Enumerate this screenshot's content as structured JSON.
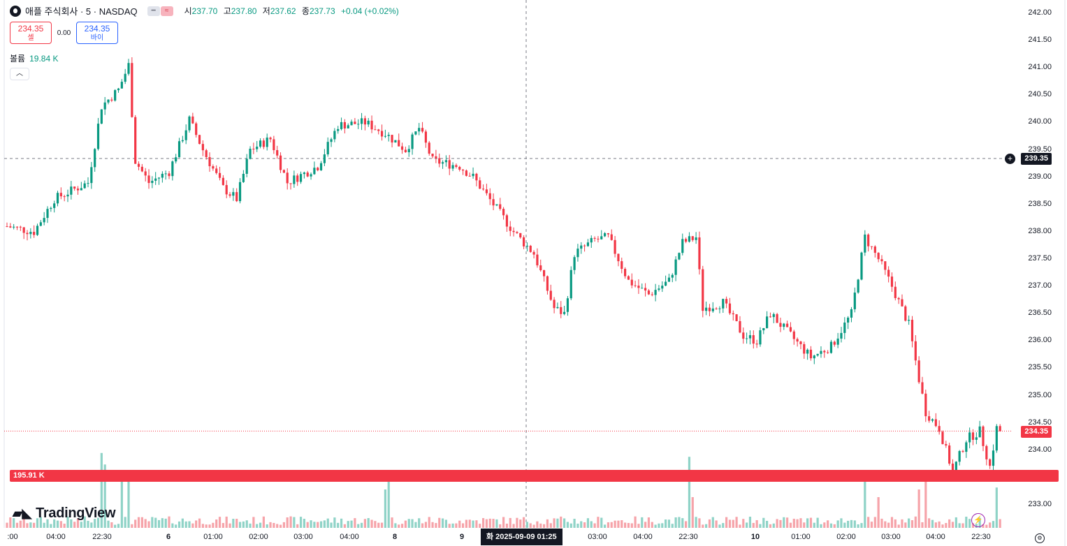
{
  "header": {
    "symbol": "애플 주식회사 · 5 · NASDAQ",
    "ohlc": {
      "o_label": "시",
      "o": "237.70",
      "h_label": "고",
      "h": "237.80",
      "l_label": "저",
      "l": "237.62",
      "c_label": "종",
      "c": "237.73",
      "change": "+0.04 (+0.02%)"
    },
    "pill_icons": [
      "minus-icon",
      "approx-icon"
    ]
  },
  "trade": {
    "sell_price": "234.35",
    "sell_label": "셀",
    "spread": "0.00",
    "buy_price": "234.35",
    "buy_label": "바이"
  },
  "volume": {
    "label": "볼륨",
    "value": "19.84 K",
    "scale_tag": "195.91 K"
  },
  "brand": "TradingView",
  "crosshair": {
    "price_tag": "239.35",
    "time_tag": "화 2025-09-09   01:25"
  },
  "last_price_tag": "234.35",
  "colors": {
    "up": "#089981",
    "down": "#f23645",
    "vol_up": "#8fd3c7",
    "vol_down": "#f6a3a9"
  },
  "chart_data": {
    "type": "candlestick",
    "ylim": [
      232.6,
      242.1
    ],
    "y_ticks": [
      "242.00",
      "241.50",
      "241.00",
      "240.50",
      "240.00",
      "239.50",
      "239.00",
      "238.50",
      "238.00",
      "237.50",
      "237.00",
      "236.50",
      "236.00",
      "235.50",
      "235.00",
      "234.50",
      "234.00",
      "233.00"
    ],
    "x_tick_labels": [
      ":00",
      "04:00",
      "22:30",
      "6",
      "01:00",
      "02:00",
      "03:00",
      "04:00",
      "8",
      "9",
      "03:00",
      "04:00",
      "22:30",
      "10",
      "01:00",
      "02:00",
      "03:00",
      "04:00",
      "22:30"
    ],
    "close_path": [
      {
        "i": 0,
        "p": 238.1
      },
      {
        "i": 8,
        "p": 238.0
      },
      {
        "i": 14,
        "p": 238.6
      },
      {
        "i": 24,
        "p": 238.9
      },
      {
        "i": 28,
        "p": 240.3
      },
      {
        "i": 33,
        "p": 240.6
      },
      {
        "i": 36,
        "p": 241.05
      },
      {
        "i": 38,
        "p": 239.3
      },
      {
        "i": 42,
        "p": 238.9
      },
      {
        "i": 48,
        "p": 239.1
      },
      {
        "i": 54,
        "p": 240.05
      },
      {
        "i": 58,
        "p": 239.5
      },
      {
        "i": 64,
        "p": 238.8
      },
      {
        "i": 68,
        "p": 238.6
      },
      {
        "i": 72,
        "p": 239.5
      },
      {
        "i": 78,
        "p": 239.7
      },
      {
        "i": 83,
        "p": 238.9
      },
      {
        "i": 92,
        "p": 239.2
      },
      {
        "i": 98,
        "p": 239.95
      },
      {
        "i": 106,
        "p": 240.0
      },
      {
        "i": 112,
        "p": 239.8
      },
      {
        "i": 118,
        "p": 239.5
      },
      {
        "i": 122,
        "p": 239.9
      },
      {
        "i": 126,
        "p": 239.3
      },
      {
        "i": 134,
        "p": 239.2
      },
      {
        "i": 138,
        "p": 239.0
      },
      {
        "i": 144,
        "p": 238.5
      },
      {
        "i": 150,
        "p": 238.0
      },
      {
        "i": 156,
        "p": 237.6
      },
      {
        "i": 162,
        "p": 236.6
      },
      {
        "i": 165,
        "p": 236.5
      },
      {
        "i": 168,
        "p": 237.6
      },
      {
        "i": 174,
        "p": 237.85
      },
      {
        "i": 178,
        "p": 237.9
      },
      {
        "i": 184,
        "p": 237.1
      },
      {
        "i": 190,
        "p": 236.85
      },
      {
        "i": 196,
        "p": 237.1
      },
      {
        "i": 200,
        "p": 237.8
      },
      {
        "i": 204,
        "p": 237.9
      },
      {
        "i": 206,
        "p": 236.6
      },
      {
        "i": 212,
        "p": 236.7
      },
      {
        "i": 218,
        "p": 236.1
      },
      {
        "i": 222,
        "p": 236.0
      },
      {
        "i": 226,
        "p": 236.5
      },
      {
        "i": 232,
        "p": 236.1
      },
      {
        "i": 238,
        "p": 235.7
      },
      {
        "i": 244,
        "p": 235.9
      },
      {
        "i": 250,
        "p": 236.5
      },
      {
        "i": 254,
        "p": 237.9
      },
      {
        "i": 258,
        "p": 237.5
      },
      {
        "i": 262,
        "p": 237.0
      },
      {
        "i": 267,
        "p": 236.3
      },
      {
        "i": 270,
        "p": 235.3
      },
      {
        "i": 272,
        "p": 234.7
      },
      {
        "i": 276,
        "p": 234.4
      },
      {
        "i": 280,
        "p": 233.6
      },
      {
        "i": 284,
        "p": 234.2
      },
      {
        "i": 288,
        "p": 234.35
      },
      {
        "i": 291,
        "p": 233.7
      },
      {
        "i": 293,
        "p": 234.4
      },
      {
        "i": 294,
        "p": 234.35
      }
    ],
    "volume_spikes": [
      {
        "i": 28,
        "v": 195
      },
      {
        "i": 29,
        "v": 165
      },
      {
        "i": 36,
        "v": 150
      },
      {
        "i": 34,
        "v": 125
      },
      {
        "i": 113,
        "v": 145
      },
      {
        "i": 112,
        "v": 100
      },
      {
        "i": 202,
        "v": 185
      },
      {
        "i": 203,
        "v": 80
      },
      {
        "i": 254,
        "v": 120
      },
      {
        "i": 258,
        "v": 80
      },
      {
        "i": 272,
        "v": 130
      },
      {
        "i": 270,
        "v": 100
      },
      {
        "i": 293,
        "v": 105
      }
    ],
    "volume_ylim": [
      0,
      200
    ]
  }
}
